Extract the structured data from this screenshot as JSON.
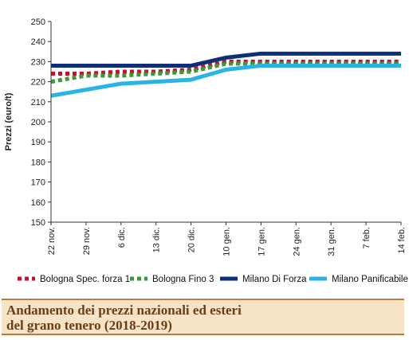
{
  "chart_data": {
    "type": "line",
    "title": "",
    "xlabel": "",
    "ylabel": "Prezzi (euro/t)",
    "ylim": [
      150,
      250
    ],
    "yticks": [
      150,
      160,
      170,
      180,
      190,
      200,
      210,
      220,
      230,
      240,
      250
    ],
    "categories": [
      "22 nov.",
      "29 nov.",
      "6 dic.",
      "13 dic.",
      "20 dic.",
      "10 gen.",
      "17 gen.",
      "24 gen.",
      "31 gen.",
      "7 feb.",
      "14 feb."
    ],
    "grid": false,
    "legend_position": "bottom",
    "series": [
      {
        "name": "Bologna Spec. forza 1",
        "color": "#c8102e",
        "style": "dotted",
        "values": [
          224,
          224,
          225,
          225,
          226,
          230,
          230,
          230,
          230,
          230,
          230
        ]
      },
      {
        "name": "Bologna Fino 3",
        "color": "#3a9a3a",
        "style": "dotted",
        "values": [
          220,
          223,
          223,
          224,
          225,
          229,
          229,
          229,
          229,
          229,
          229
        ]
      },
      {
        "name": "Milano Di Forza",
        "color": "#0d2f7a",
        "style": "solid",
        "values": [
          228,
          228,
          228,
          228,
          228,
          232,
          234,
          234,
          234,
          234,
          234
        ]
      },
      {
        "name": "Milano Panificabile",
        "color": "#2ab4e6",
        "style": "solid",
        "values": [
          213,
          216,
          219,
          220,
          221,
          226,
          228,
          228,
          228,
          228,
          228
        ]
      }
    ]
  },
  "caption": {
    "line1": "Andamento dei prezzi nazionali ed esteri",
    "line2": "del grano tenero (2018-2019)"
  }
}
